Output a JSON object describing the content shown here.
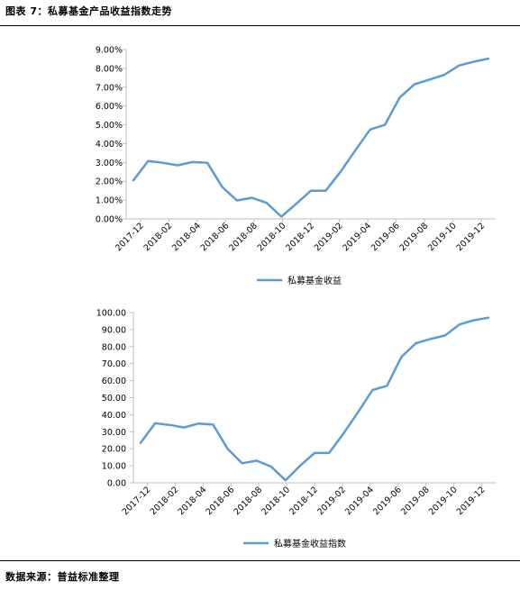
{
  "header": {
    "title": "图表 7：私募基金产品收益指数走势"
  },
  "footer": {
    "source": "数据来源：普益标准整理"
  },
  "colors": {
    "series": "#5b9bd5",
    "axis": "#bfbfbf",
    "rule": "#000000"
  },
  "chart_data": [
    {
      "type": "line",
      "x_ticks": [
        "2017-12",
        "2018-02",
        "2018-04",
        "2018-06",
        "2018-08",
        "2018-10",
        "2018-12",
        "2019-02",
        "2019-04",
        "2019-06",
        "2019-08",
        "2019-10",
        "2019-12"
      ],
      "y_ticks": [
        "0.00%",
        "1.00%",
        "2.00%",
        "3.00%",
        "4.00%",
        "5.00%",
        "6.00%",
        "7.00%",
        "8.00%",
        "9.00%"
      ],
      "ylim": [
        0,
        9
      ],
      "grid": false,
      "legend_position": "bottom",
      "series": [
        {
          "name": "私募基金收益",
          "values": [
            2.05,
            3.08,
            2.98,
            2.85,
            3.02,
            2.98,
            1.7,
            0.98,
            1.12,
            0.85,
            0.12,
            0.8,
            1.5,
            1.5,
            2.5,
            3.65,
            4.75,
            5.0,
            6.45,
            7.15,
            7.4,
            7.65,
            8.15,
            8.35,
            8.52
          ]
        }
      ]
    },
    {
      "type": "line",
      "x_ticks": [
        "2017-12",
        "2018-02",
        "2018-04",
        "2018-06",
        "2018-08",
        "2018-10",
        "2018-12",
        "2019-02",
        "2019-04",
        "2019-06",
        "2019-08",
        "2019-10",
        "2019-12"
      ],
      "y_ticks": [
        "0.00",
        "10.00",
        "20.00",
        "30.00",
        "40.00",
        "50.00",
        "60.00",
        "70.00",
        "80.00",
        "90.00",
        "100.00"
      ],
      "ylim": [
        0,
        100
      ],
      "grid": false,
      "legend_position": "bottom",
      "series": [
        {
          "name": "私募基金收益指数",
          "values": [
            23.5,
            35.0,
            34.0,
            32.5,
            34.8,
            34.2,
            20.0,
            11.5,
            13.0,
            9.5,
            1.5,
            10.0,
            17.5,
            17.5,
            29.0,
            41.5,
            54.5,
            57.0,
            74.0,
            82.0,
            84.5,
            86.5,
            93.0,
            95.5,
            97.0
          ]
        }
      ]
    }
  ]
}
